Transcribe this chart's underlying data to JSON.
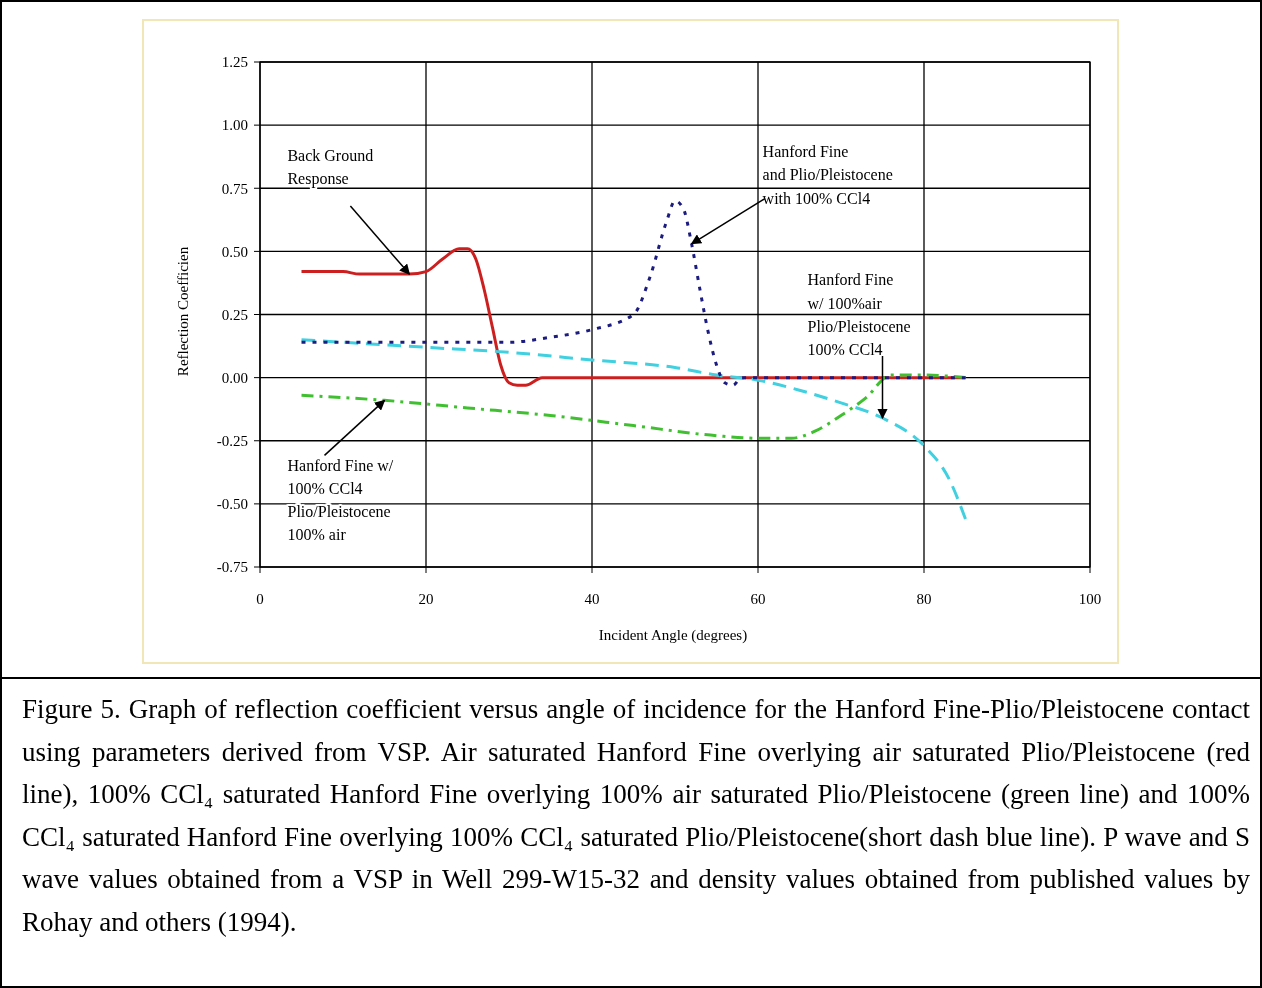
{
  "chart_data": {
    "type": "line",
    "xlabel": "Incident Angle (degrees)",
    "ylabel": "Reflection Coefficien",
    "xlim": [
      0,
      100
    ],
    "xticks": [
      0,
      20,
      40,
      60,
      80,
      100
    ],
    "ylim": [
      -0.75,
      1.25
    ],
    "yticks": [
      {
        "value": -0.75,
        "label": "-0.75"
      },
      {
        "value": -0.5,
        "label": "-0.50"
      },
      {
        "value": -0.25,
        "label": "-0.25"
      },
      {
        "value": 0,
        "label": "0.00"
      },
      {
        "value": 0.25,
        "label": "0.25"
      },
      {
        "value": 0.5,
        "label": "0.50"
      },
      {
        "value": 0.75,
        "label": "0.75"
      },
      {
        "value": 1,
        "label": "1.00"
      },
      {
        "value": 1.25,
        "label": "1.25"
      }
    ],
    "grid": true,
    "series": [
      {
        "color": "#cc2020",
        "line_style": "solid",
        "x": [
          5,
          10,
          12,
          18,
          20,
          22,
          24,
          25,
          26,
          27,
          28,
          29,
          30,
          31,
          32,
          34,
          40,
          60,
          85
        ],
        "values": [
          0.42,
          0.42,
          0.41,
          0.41,
          0.42,
          0.47,
          0.51,
          0.51,
          0.47,
          0.35,
          0.2,
          0.05,
          -0.02,
          -0.03,
          -0.03,
          0,
          0,
          0,
          0
        ]
      },
      {
        "color": "#40d0e0",
        "line_style": "dashed",
        "x": [
          5,
          20,
          30,
          40,
          50,
          55,
          60,
          65,
          70,
          75,
          80,
          83,
          85
        ],
        "values": [
          0.15,
          0.12,
          0.1,
          0.07,
          0.04,
          0.01,
          -0.01,
          -0.05,
          -0.1,
          -0.16,
          -0.27,
          -0.4,
          -0.56
        ]
      },
      {
        "color": "#40c030",
        "line_style": "dashdot",
        "x": [
          5,
          15,
          25,
          35,
          45,
          55,
          60,
          64,
          67,
          70,
          73,
          76,
          80,
          85
        ],
        "values": [
          -0.07,
          -0.09,
          -0.12,
          -0.15,
          -0.19,
          -0.23,
          -0.24,
          -0.24,
          -0.21,
          -0.15,
          -0.08,
          0.01,
          0.01,
          0
        ]
      },
      {
        "color": "#1c1c80",
        "line_style": "dotted",
        "x": [
          5,
          30,
          35,
          40,
          45,
          47,
          49,
          50,
          51,
          52,
          53,
          54,
          55,
          56,
          57,
          58,
          70,
          85
        ],
        "values": [
          0.14,
          0.14,
          0.16,
          0.19,
          0.25,
          0.4,
          0.62,
          0.7,
          0.67,
          0.53,
          0.35,
          0.18,
          0.05,
          -0.02,
          -0.03,
          0,
          0,
          0
        ]
      }
    ],
    "annotations": [
      {
        "text": "Back Ground\nResponse",
        "x": 18,
        "y": 0.41
      },
      {
        "text": "Hanford Fine\nand Plio/Pleistocene\nwith 100% CCl4",
        "x": 52,
        "y": 0.53
      },
      {
        "text": "Hanford Fine\nw/ 100%air\nPlio/Pleistocene\n100% CCl4",
        "x": 75,
        "y": -0.16
      },
      {
        "text": "Hanford Fine w/\n100% CCl4\nPlio/Pleistocene\n100% air",
        "x": 15,
        "y": -0.09
      },
      "Figure 5. Graph of  reflection coefficient versus angle of incidence for the Hanford Fine-Plio/Pleistocene contact using parameters derived from VSP.  Air saturated Hanford Fine overlying air saturated Plio/Pleistocene (red line), 100% CCl₄ saturated Hanford Fine overlying 100% air saturated Plio/Pleistocene (green line) and 100% CCl₄ saturated Hanford Fine overlying 100% CCl₄ saturated Plio/Pleistocene(short dash blue line). P wave and S wave values obtained from a VSP in Well 299-W15-32 and density  values obtained from published values by Rohay and others (1994)."
    ]
  }
}
